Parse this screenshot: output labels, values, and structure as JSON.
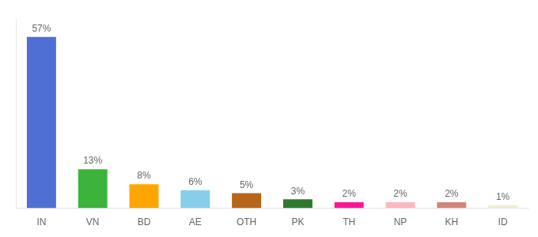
{
  "chart_data": {
    "type": "bar",
    "categories": [
      "IN",
      "VN",
      "BD",
      "AE",
      "OTH",
      "PK",
      "TH",
      "NP",
      "KH",
      "ID"
    ],
    "values": [
      57,
      13,
      8,
      6,
      5,
      3,
      2,
      2,
      2,
      1
    ],
    "value_labels": [
      "57%",
      "13%",
      "8%",
      "6%",
      "5%",
      "3%",
      "2%",
      "2%",
      "2%",
      "1%"
    ],
    "colors": [
      "#4F6FD4",
      "#3CB43C",
      "#FFA500",
      "#87CEEB",
      "#B8651A",
      "#2D7A2D",
      "#FF1493",
      "#FFB6C1",
      "#D4857A",
      "#F0EDD5"
    ],
    "ylim": [
      0,
      63
    ],
    "grid": false,
    "data_labels": true,
    "tick_labels": "x"
  }
}
